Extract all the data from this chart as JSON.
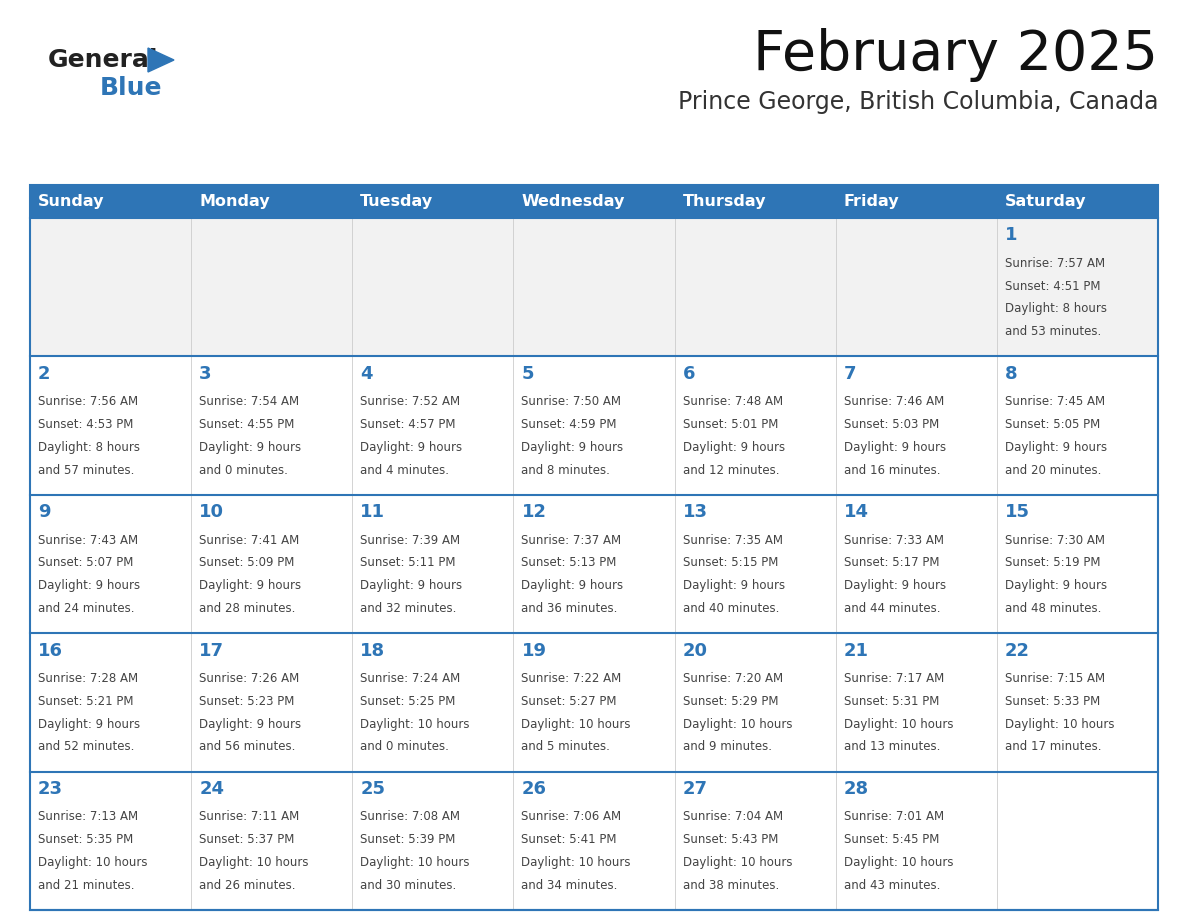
{
  "title": "February 2025",
  "subtitle": "Prince George, British Columbia, Canada",
  "header_color": "#2e75b6",
  "header_text_color": "#ffffff",
  "cell_bg_color": "#ffffff",
  "first_row_bg": "#f2f2f2",
  "cell_border_color": "#2e75b6",
  "day_number_color": "#2e75b6",
  "cell_text_color": "#444444",
  "days_of_week": [
    "Sunday",
    "Monday",
    "Tuesday",
    "Wednesday",
    "Thursday",
    "Friday",
    "Saturday"
  ],
  "logo_general_color": "#222222",
  "logo_blue_color": "#2e75b6",
  "calendar_data": [
    [
      null,
      null,
      null,
      null,
      null,
      null,
      {
        "day": 1,
        "sunrise": "7:57 AM",
        "sunset": "4:51 PM",
        "daylight": "8 hours and 53 minutes."
      }
    ],
    [
      {
        "day": 2,
        "sunrise": "7:56 AM",
        "sunset": "4:53 PM",
        "daylight": "8 hours and 57 minutes."
      },
      {
        "day": 3,
        "sunrise": "7:54 AM",
        "sunset": "4:55 PM",
        "daylight": "9 hours and 0 minutes."
      },
      {
        "day": 4,
        "sunrise": "7:52 AM",
        "sunset": "4:57 PM",
        "daylight": "9 hours and 4 minutes."
      },
      {
        "day": 5,
        "sunrise": "7:50 AM",
        "sunset": "4:59 PM",
        "daylight": "9 hours and 8 minutes."
      },
      {
        "day": 6,
        "sunrise": "7:48 AM",
        "sunset": "5:01 PM",
        "daylight": "9 hours and 12 minutes."
      },
      {
        "day": 7,
        "sunrise": "7:46 AM",
        "sunset": "5:03 PM",
        "daylight": "9 hours and 16 minutes."
      },
      {
        "day": 8,
        "sunrise": "7:45 AM",
        "sunset": "5:05 PM",
        "daylight": "9 hours and 20 minutes."
      }
    ],
    [
      {
        "day": 9,
        "sunrise": "7:43 AM",
        "sunset": "5:07 PM",
        "daylight": "9 hours and 24 minutes."
      },
      {
        "day": 10,
        "sunrise": "7:41 AM",
        "sunset": "5:09 PM",
        "daylight": "9 hours and 28 minutes."
      },
      {
        "day": 11,
        "sunrise": "7:39 AM",
        "sunset": "5:11 PM",
        "daylight": "9 hours and 32 minutes."
      },
      {
        "day": 12,
        "sunrise": "7:37 AM",
        "sunset": "5:13 PM",
        "daylight": "9 hours and 36 minutes."
      },
      {
        "day": 13,
        "sunrise": "7:35 AM",
        "sunset": "5:15 PM",
        "daylight": "9 hours and 40 minutes."
      },
      {
        "day": 14,
        "sunrise": "7:33 AM",
        "sunset": "5:17 PM",
        "daylight": "9 hours and 44 minutes."
      },
      {
        "day": 15,
        "sunrise": "7:30 AM",
        "sunset": "5:19 PM",
        "daylight": "9 hours and 48 minutes."
      }
    ],
    [
      {
        "day": 16,
        "sunrise": "7:28 AM",
        "sunset": "5:21 PM",
        "daylight": "9 hours and 52 minutes."
      },
      {
        "day": 17,
        "sunrise": "7:26 AM",
        "sunset": "5:23 PM",
        "daylight": "9 hours and 56 minutes."
      },
      {
        "day": 18,
        "sunrise": "7:24 AM",
        "sunset": "5:25 PM",
        "daylight": "10 hours and 0 minutes."
      },
      {
        "day": 19,
        "sunrise": "7:22 AM",
        "sunset": "5:27 PM",
        "daylight": "10 hours and 5 minutes."
      },
      {
        "day": 20,
        "sunrise": "7:20 AM",
        "sunset": "5:29 PM",
        "daylight": "10 hours and 9 minutes."
      },
      {
        "day": 21,
        "sunrise": "7:17 AM",
        "sunset": "5:31 PM",
        "daylight": "10 hours and 13 minutes."
      },
      {
        "day": 22,
        "sunrise": "7:15 AM",
        "sunset": "5:33 PM",
        "daylight": "10 hours and 17 minutes."
      }
    ],
    [
      {
        "day": 23,
        "sunrise": "7:13 AM",
        "sunset": "5:35 PM",
        "daylight": "10 hours and 21 minutes."
      },
      {
        "day": 24,
        "sunrise": "7:11 AM",
        "sunset": "5:37 PM",
        "daylight": "10 hours and 26 minutes."
      },
      {
        "day": 25,
        "sunrise": "7:08 AM",
        "sunset": "5:39 PM",
        "daylight": "10 hours and 30 minutes."
      },
      {
        "day": 26,
        "sunrise": "7:06 AM",
        "sunset": "5:41 PM",
        "daylight": "10 hours and 34 minutes."
      },
      {
        "day": 27,
        "sunrise": "7:04 AM",
        "sunset": "5:43 PM",
        "daylight": "10 hours and 38 minutes."
      },
      {
        "day": 28,
        "sunrise": "7:01 AM",
        "sunset": "5:45 PM",
        "daylight": "10 hours and 43 minutes."
      },
      null
    ]
  ]
}
